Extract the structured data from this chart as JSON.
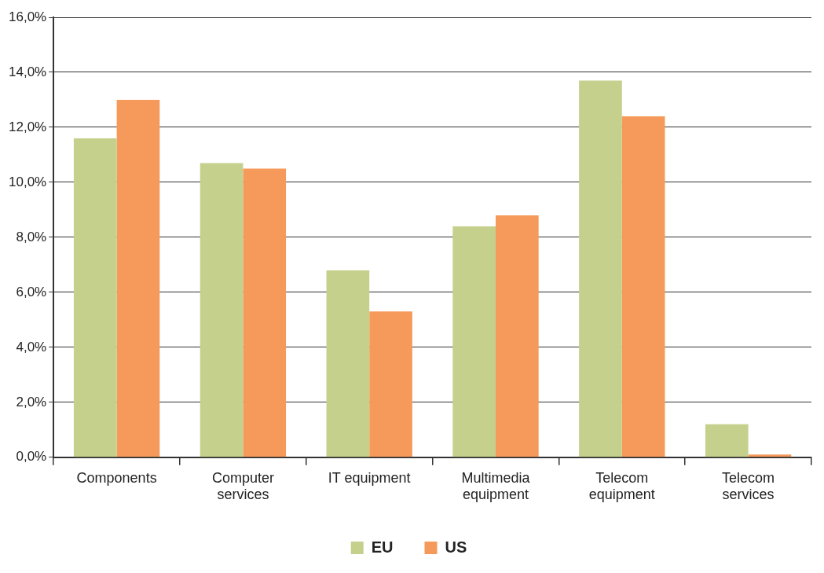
{
  "chart_data": {
    "type": "bar",
    "categories": [
      "Components",
      "Computer services",
      "IT equipment",
      "Multimedia equipment",
      "Telecom equipment",
      "Telecom services"
    ],
    "series": [
      {
        "name": "EU",
        "color": "#c5d08c",
        "values": [
          11.6,
          10.7,
          6.8,
          8.4,
          13.7,
          1.2
        ]
      },
      {
        "name": "US",
        "color": "#f59a5a",
        "values": [
          13.0,
          10.5,
          5.3,
          8.8,
          12.4,
          0.1
        ]
      }
    ],
    "ylim": [
      0,
      16
    ],
    "yticks": [
      {
        "value": 0,
        "label": "0,0%"
      },
      {
        "value": 2,
        "label": "2,0%"
      },
      {
        "value": 4,
        "label": "4,0%"
      },
      {
        "value": 6,
        "label": "6,0%"
      },
      {
        "value": 8,
        "label": "8,0%"
      },
      {
        "value": 10,
        "label": "10,0%"
      },
      {
        "value": 12,
        "label": "12,0%"
      },
      {
        "value": 14,
        "label": "14,0%"
      },
      {
        "value": 16,
        "label": "16,0%"
      }
    ],
    "grid": "y",
    "legend": "bottom"
  }
}
